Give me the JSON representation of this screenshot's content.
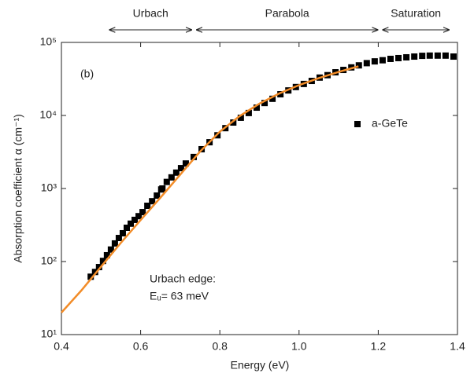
{
  "chart_data": {
    "type": "scatter",
    "xlabel": "Energy (eV)",
    "ylabel": "Absorption coefficient α (cm⁻¹)",
    "log_y": true,
    "xlim": [
      0.4,
      1.4
    ],
    "xticks": [
      0.4,
      0.6,
      0.8,
      {
        "value": 1,
        "label": "1.0"
      },
      1.2,
      1.4
    ],
    "ylim": [
      10,
      100000
    ],
    "yticks": [
      {
        "value": 10,
        "label": "10¹"
      },
      {
        "value": 100,
        "label": "10²"
      },
      {
        "value": 1000,
        "label": "10³"
      },
      {
        "value": 10000,
        "label": "10⁴"
      },
      {
        "value": 100000,
        "label": "10⁵"
      }
    ],
    "legend": "right",
    "annotations": [
      "(b)",
      "Urbach edge:",
      "Eᵤ= 63 meV"
    ],
    "regions": [
      {
        "label": "Urbach",
        "range": [
          0.52,
          0.73
        ]
      },
      {
        "label": "Parabola",
        "range": [
          0.74,
          1.2
        ]
      },
      {
        "label": "Saturation",
        "range": [
          1.21,
          1.38
        ]
      }
    ],
    "series": [
      {
        "name": "a-GeTe",
        "kind": "scatter",
        "color": "#000000",
        "x": [
          0.474,
          0.485,
          0.495,
          0.505,
          0.515,
          0.525,
          0.535,
          0.545,
          0.555,
          0.565,
          0.575,
          0.585,
          0.595,
          0.605,
          0.617,
          0.629,
          0.641,
          0.652,
          0.655,
          0.666,
          0.678,
          0.69,
          0.702,
          0.714,
          0.734,
          0.754,
          0.774,
          0.794,
          0.814,
          0.834,
          0.853,
          0.873,
          0.893,
          0.913,
          0.933,
          0.953,
          0.973,
          0.992,
          1.012,
          1.032,
          1.052,
          1.072,
          1.092,
          1.112,
          1.132,
          1.151,
          1.171,
          1.191,
          1.211,
          1.231,
          1.251,
          1.271,
          1.291,
          1.311,
          1.33,
          1.35,
          1.37,
          1.39
        ],
        "values": [
          62,
          72,
          84,
          102,
          122,
          146,
          177,
          210,
          244,
          290,
          330,
          372,
          418,
          475,
          580,
          670,
          800,
          970,
          1000,
          1230,
          1420,
          1650,
          1900,
          2200,
          2700,
          3450,
          4300,
          5350,
          6700,
          8000,
          9300,
          10800,
          12800,
          14800,
          16900,
          19500,
          22000,
          24500,
          27000,
          29700,
          33000,
          35600,
          39000,
          42000,
          45500,
          48500,
          52000,
          55000,
          57000,
          59500,
          61000,
          62500,
          64000,
          65500,
          66000,
          66000,
          66000,
          64000
        ]
      },
      {
        "kind": "line",
        "color": "#f28c28",
        "x": [
          0.4,
          0.45,
          0.5,
          0.55,
          0.6,
          0.65,
          0.7,
          0.75,
          0.8,
          0.85,
          0.9,
          0.95,
          1.0,
          1.05,
          1.1,
          1.15
        ],
        "values": [
          20,
          40,
          85,
          180,
          370,
          750,
          1550,
          3200,
          6000,
          9800,
          14500,
          20000,
          26000,
          32500,
          39500,
          47000
        ]
      }
    ]
  }
}
